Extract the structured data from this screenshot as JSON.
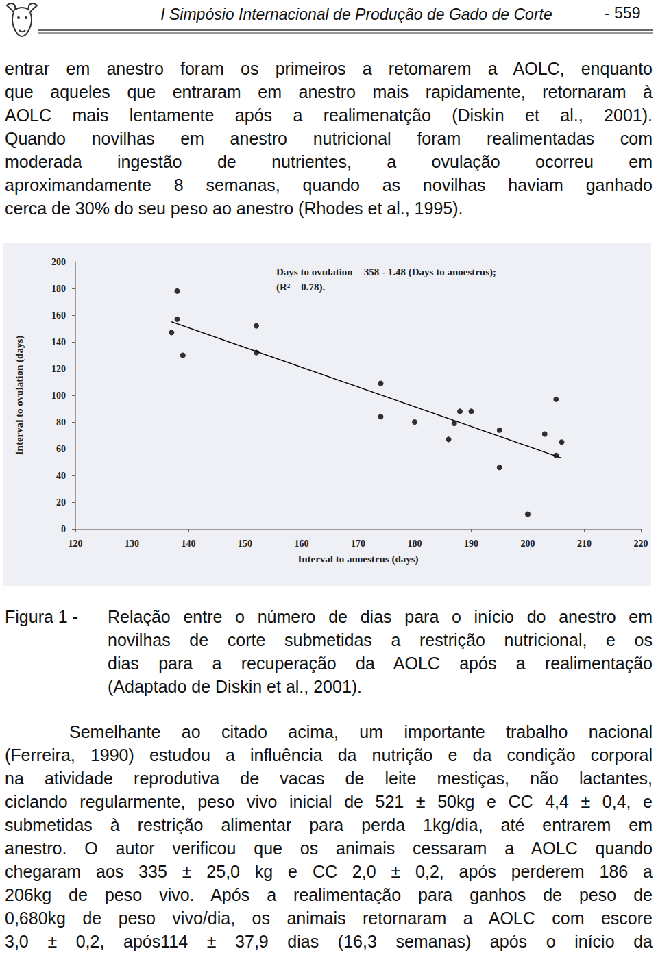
{
  "header": {
    "title": "I Simpósio Internacional de Produção de Gado de Corte",
    "page": "- 559"
  },
  "paragraph_1": {
    "lines": [
      "entrar em anestro foram os primeiros a retomarem a AOLC, enquanto",
      "que aqueles que entraram em anestro mais rapidamente, retornaram à",
      "AOLC mais lentamente após a realimenatção (Diskin et al., 2001).",
      "Quando novilhas em anestro nutricional foram realimentadas com",
      "moderada ingestão de nutrientes, a ovulação ocorreu em",
      "aproximandamente 8 semanas, quando as novilhas haviam ganhado",
      "cerca de 30% do seu peso ao anestro (Rhodes et al., 1995)."
    ]
  },
  "chart_data": {
    "type": "scatter",
    "annotations": [
      "Days to ovulation = 358 - 1.48 (Days to anoestrus);",
      "(R² = 0.78)."
    ],
    "x_label": "Interval to anoestrus (days)",
    "y_label": "Interval to ovulation (days)",
    "x": [
      137,
      138,
      138,
      139,
      152,
      152,
      174,
      174,
      180,
      186,
      187,
      188,
      190,
      195,
      195,
      200,
      203,
      205,
      205,
      206
    ],
    "values": [
      147,
      178,
      157,
      130,
      152,
      132,
      109,
      84,
      80,
      67,
      79,
      88,
      88,
      74,
      46,
      11,
      71,
      97,
      55,
      65
    ],
    "color": "#000000",
    "trend": {
      "x": [
        137,
        206
      ],
      "values": [
        155,
        53
      ],
      "color": "#000000"
    },
    "xlim": [
      120,
      220
    ],
    "xticks": [
      120,
      130,
      140,
      150,
      160,
      170,
      180,
      190,
      200,
      210,
      220
    ],
    "ylim": [
      0,
      200
    ],
    "yticks": [
      0,
      20,
      40,
      60,
      80,
      100,
      120,
      140,
      160,
      180,
      200
    ],
    "grid": false
  },
  "caption": {
    "label": "Figura 1 -",
    "lines": [
      "Relação entre o número de dias para o início do anestro em",
      "novilhas de corte submetidas a restrição nutricional, e os",
      "dias para a recuperação da AOLC após a realimentação",
      "(Adaptado de Diskin et al., 2001)."
    ]
  },
  "paragraph_2": {
    "lines": [
      "Semelhante ao citado acima, um importante trabalho nacional",
      "(Ferreira, 1990) estudou a influência da nutrição e da condição corporal",
      "na atividade reprodutiva de vacas de leite mestiças, não lactantes,",
      "ciclando regularmente, peso vivo inicial de 521 ± 50kg e CC 4,4 ± 0,4, e",
      "submetidas à restrição alimentar para perda 1kg/dia, até entrarem em",
      "anestro. O autor verificou que os animais cessaram a AOLC quando",
      "chegaram aos 335 ± 25,0 kg e CC 2,0 ± 0,2, após perderem 186 a",
      "206kg de peso vivo. Após a realimentação para ganhos de peso de",
      "0,680kg de peso vivo/dia, os animais retornaram a AOLC com escore",
      "3,0 ± 0,2, após114 ± 37,9 dias (16,3 semanas) após o início da"
    ]
  }
}
